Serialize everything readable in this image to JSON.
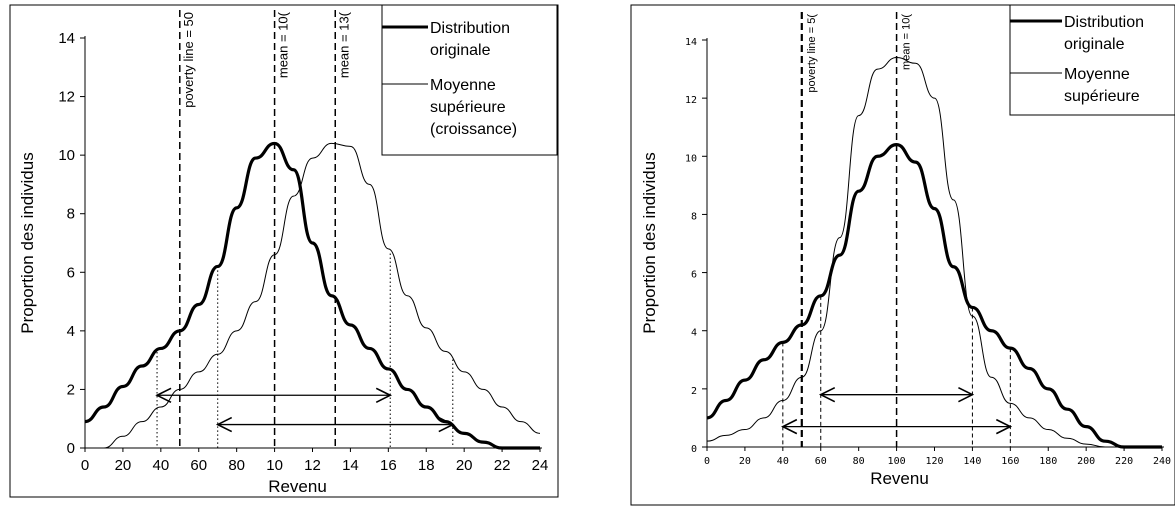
{
  "chart_data": [
    {
      "type": "line",
      "xlabel": "Revenu",
      "ylabel": "Proportion des individus",
      "xlim": [
        0,
        24
      ],
      "ylim": [
        0,
        14
      ],
      "x_ticks": [
        "0",
        "20",
        "40",
        "60",
        "80",
        "10",
        "12",
        "14",
        "16",
        "18",
        "20",
        "22",
        "24"
      ],
      "y_ticks": [
        "0",
        "2",
        "4",
        "6",
        "8",
        "10",
        "12",
        "14"
      ],
      "legend": [
        "Distribution originale",
        "Moyenne supérieure (croissance)"
      ],
      "legend_position": "top-right",
      "grid": false,
      "vertical_lines": [
        {
          "x": 5,
          "label": "poverty line = 50"
        },
        {
          "x": 10,
          "label": "mean = 10("
        },
        {
          "x": 13.2,
          "label": "mean = 13("
        }
      ],
      "series": [
        {
          "name": "Distribution originale",
          "style": "thick",
          "x": [
            0,
            1,
            2,
            3,
            4,
            5,
            6,
            7,
            8,
            9,
            10,
            11,
            12,
            13,
            14,
            15,
            16,
            17,
            18,
            19,
            20,
            21,
            22,
            22.5,
            23,
            24
          ],
          "y": [
            0.9,
            1.4,
            2.1,
            2.8,
            3.4,
            4.0,
            4.9,
            6.2,
            8.2,
            9.9,
            10.4,
            9.5,
            7.0,
            5.2,
            4.2,
            3.4,
            2.7,
            2.0,
            1.4,
            0.9,
            0.5,
            0.2,
            0.0,
            0.0,
            0.0,
            0.0
          ]
        },
        {
          "name": "Moyenne supérieure (croissance)",
          "style": "thin",
          "x": [
            0,
            1,
            2,
            3,
            4,
            5,
            6,
            7,
            8,
            9,
            10,
            11,
            12,
            13,
            14,
            15,
            16,
            17,
            18,
            19,
            20,
            21,
            22,
            23,
            24
          ],
          "y": [
            0.0,
            0.0,
            0.4,
            0.9,
            1.4,
            2.0,
            2.6,
            3.2,
            4.0,
            5.0,
            6.6,
            8.6,
            9.9,
            10.4,
            10.3,
            9.0,
            6.8,
            5.2,
            4.1,
            3.3,
            2.6,
            2.0,
            1.4,
            0.9,
            0.5
          ]
        }
      ],
      "arrows": [
        {
          "from": 3.8,
          "to": 16.1,
          "y": 1.8
        },
        {
          "from": 7.0,
          "to": 19.4,
          "y": 0.8
        }
      ]
    },
    {
      "type": "line",
      "xlabel": "Revenu",
      "ylabel": "Proportion des individus",
      "xlim": [
        0,
        240
      ],
      "ylim": [
        0,
        14
      ],
      "x_ticks": [
        "0",
        "20",
        "40",
        "60",
        "80",
        "100",
        "120",
        "140",
        "160",
        "180",
        "200",
        "220",
        "240"
      ],
      "y_ticks": [
        "0",
        "2",
        "4",
        "6",
        "8",
        "10",
        "12",
        "14"
      ],
      "legend": [
        "Distribution originale",
        "Moyenne supérieure"
      ],
      "legend_position": "top-right",
      "grid": false,
      "vertical_lines": [
        {
          "x": 50,
          "label": "poverty line = 5("
        },
        {
          "x": 100,
          "label": "mean = 10("
        }
      ],
      "series": [
        {
          "name": "Distribution originale",
          "style": "thick",
          "x": [
            0,
            10,
            20,
            30,
            40,
            50,
            60,
            70,
            80,
            90,
            100,
            110,
            120,
            130,
            140,
            150,
            160,
            170,
            180,
            190,
            200,
            210,
            220,
            240
          ],
          "y": [
            1.0,
            1.6,
            2.3,
            3.0,
            3.6,
            4.2,
            5.2,
            6.6,
            8.8,
            10.0,
            10.4,
            9.8,
            8.2,
            6.2,
            4.8,
            4.0,
            3.4,
            2.7,
            2.0,
            1.3,
            0.7,
            0.2,
            0.0,
            0.0
          ]
        },
        {
          "name": "Moyenne supérieure",
          "style": "thin",
          "x": [
            0,
            10,
            20,
            30,
            40,
            50,
            60,
            70,
            80,
            90,
            100,
            110,
            120,
            130,
            140,
            150,
            160,
            170,
            180,
            190,
            200,
            210,
            215
          ],
          "y": [
            0.2,
            0.4,
            0.6,
            1.0,
            1.6,
            2.4,
            4.0,
            7.2,
            11.4,
            13.0,
            13.4,
            13.2,
            12.0,
            8.5,
            4.5,
            2.4,
            1.5,
            1.0,
            0.6,
            0.3,
            0.1,
            0.0,
            0.0
          ]
        }
      ],
      "arrows": [
        {
          "from": 60,
          "to": 140,
          "y": 1.8
        },
        {
          "from": 40,
          "to": 160,
          "y": 0.7
        }
      ]
    }
  ]
}
